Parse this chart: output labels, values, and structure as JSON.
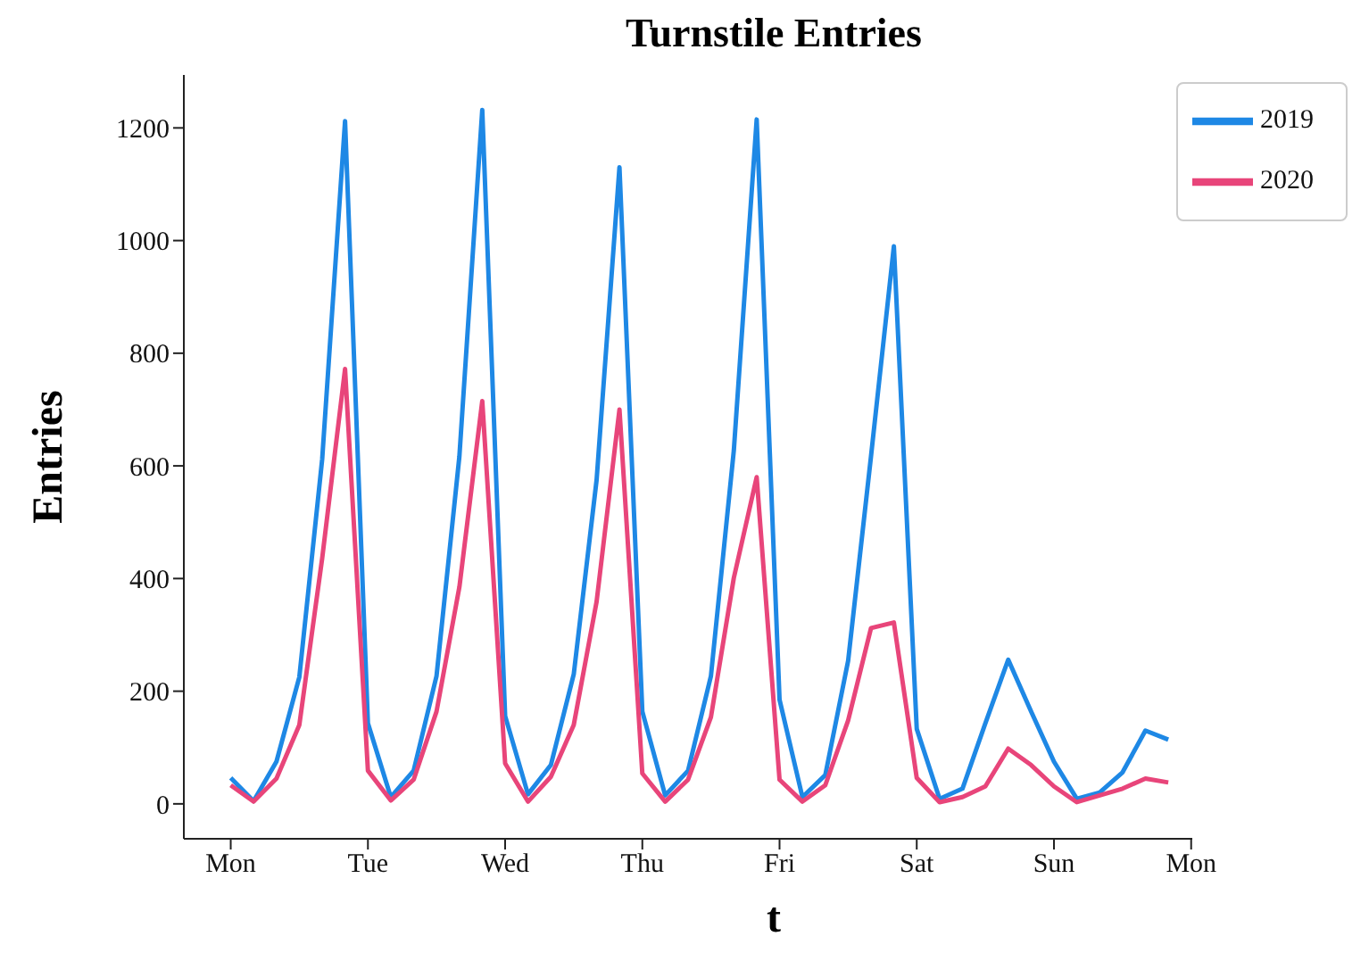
{
  "chart_data": {
    "type": "line",
    "title": "Turnstile Entries",
    "xlabel": "t",
    "ylabel": "Entries",
    "categories": [
      "Mon",
      null,
      null,
      null,
      null,
      null,
      "Tue",
      null,
      null,
      null,
      null,
      null,
      "Wed",
      null,
      null,
      null,
      null,
      null,
      "Thu",
      null,
      null,
      null,
      null,
      null,
      "Fri",
      null,
      null,
      null,
      null,
      null,
      "Sat",
      null,
      null,
      null,
      null,
      null,
      "Sun",
      null,
      null,
      null,
      null,
      null,
      "Mon"
    ],
    "series": [
      {
        "name": "2019",
        "color": "#1e88e5",
        "values": [
          46,
          5,
          75,
          225,
          612,
          1212,
          143,
          12,
          59,
          227,
          617,
          1232,
          156,
          17,
          69,
          230,
          575,
          1130,
          164,
          15,
          59,
          227,
          627,
          1215,
          185,
          12,
          51,
          254,
          617,
          990,
          133,
          9,
          27,
          143,
          256,
          164,
          75,
          9,
          20,
          56,
          130,
          114,
          null
        ]
      },
      {
        "name": "2020",
        "color": "#e8457a",
        "values": [
          33,
          4,
          45,
          140,
          436,
          772,
          59,
          6,
          43,
          164,
          385,
          715,
          72,
          4,
          48,
          140,
          359,
          700,
          54,
          4,
          43,
          154,
          401,
          580,
          43,
          4,
          33,
          148,
          312,
          322,
          46,
          3,
          12,
          31,
          98,
          69,
          31,
          3,
          15,
          27,
          45,
          38,
          null
        ]
      }
    ],
    "ylim": [
      -62,
      1294
    ],
    "yticks": [
      0,
      200,
      400,
      600,
      800,
      1000,
      1200
    ],
    "grid": false,
    "legend": "top right",
    "marker": "none",
    "line_style": "solid"
  }
}
